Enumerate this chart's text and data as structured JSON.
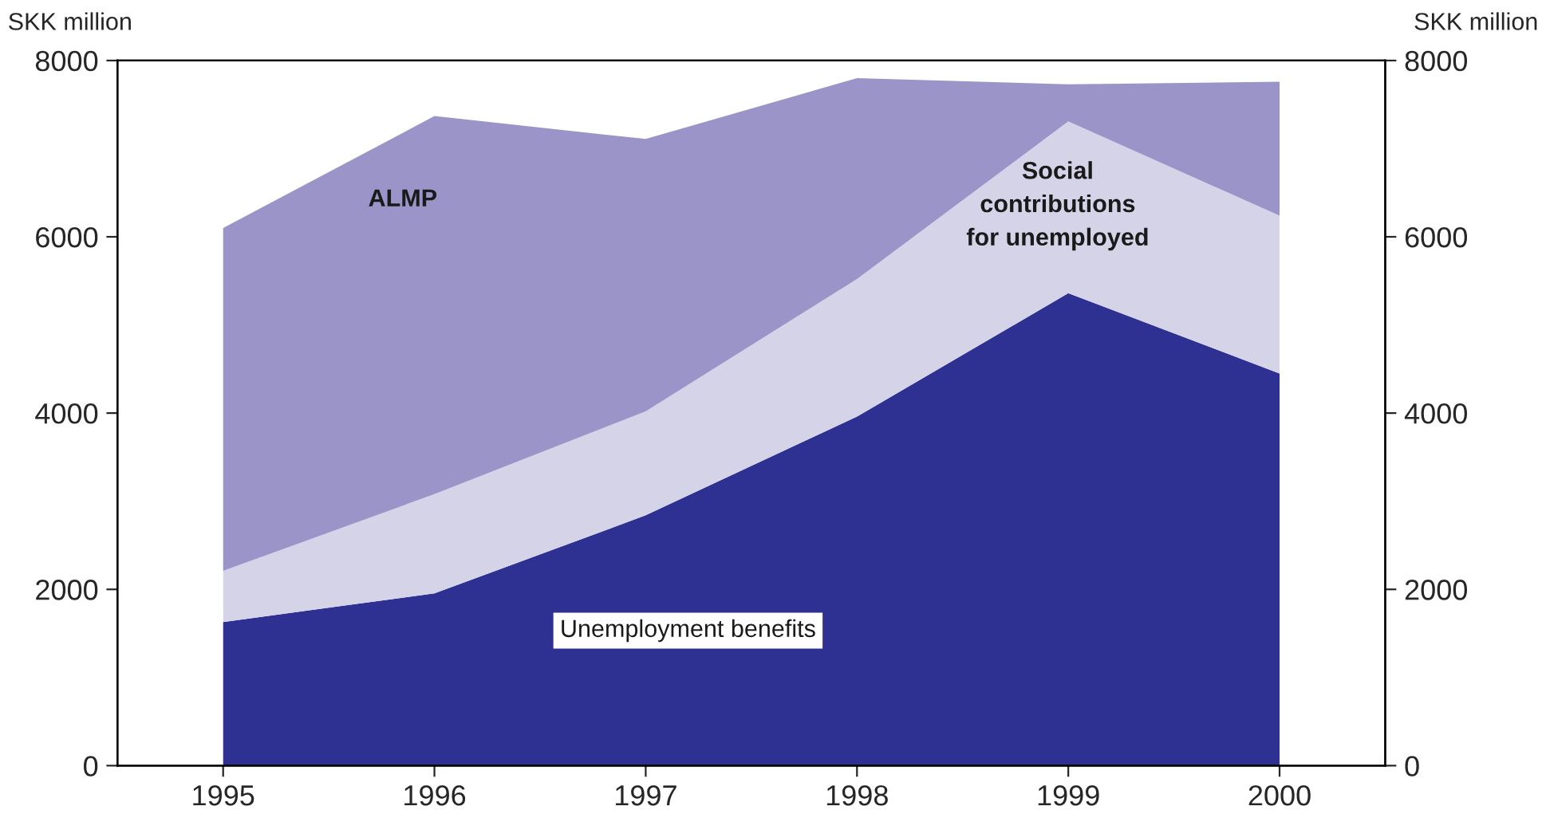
{
  "chart_data": {
    "type": "area",
    "stacked": true,
    "ylabel": "SKK million",
    "y2label": "SKK million",
    "categories": [
      "1995",
      "1996",
      "1997",
      "1998",
      "1999",
      "2000"
    ],
    "series": [
      {
        "name": "Unemployment benefits",
        "color": "#2e3192",
        "values": [
          1630,
          1955,
          2840,
          3960,
          5360,
          4450
        ]
      },
      {
        "name": "Social contributions for unemployed",
        "color": "#d4d3e8",
        "values": [
          580,
          1125,
          1180,
          1560,
          1950,
          1790
        ]
      },
      {
        "name": "ALMP",
        "color": "#9a94c8",
        "values": [
          3890,
          4290,
          3090,
          2280,
          420,
          1520
        ]
      }
    ],
    "ylim": [
      0,
      8000
    ],
    "yticks": [
      0,
      2000,
      4000,
      6000,
      8000
    ],
    "y2lim": [
      0,
      8000
    ],
    "y2ticks": [
      0,
      2000,
      4000,
      6000,
      8000
    ],
    "grid": false,
    "legend": false
  }
}
